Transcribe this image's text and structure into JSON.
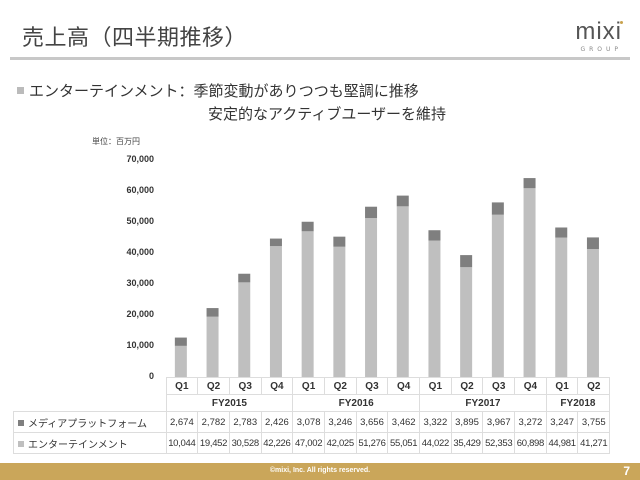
{
  "header": {
    "title": "売上高（四半期推移）",
    "logo_main": "mixi",
    "logo_sub": "GROUP"
  },
  "bullet": {
    "line1": "エンターテインメント：季節変動がありつつも堅調に推移",
    "line2": "安定的なアクティブユーザーを維持"
  },
  "footer": {
    "copyright": "©mixi, Inc. All rights reserved.",
    "page": "7"
  },
  "colors": {
    "media": "#7f7f7f",
    "entertainment": "#bfbfbf",
    "footer": "#caa65a",
    "logo_dot": "#c9a24e"
  },
  "chart_data": {
    "type": "bar",
    "stacked": true,
    "unit_label": "単位：百万円",
    "ylim": [
      0,
      70000
    ],
    "yticks": [
      "0",
      "10,000",
      "20,000",
      "30,000",
      "40,000",
      "50,000",
      "60,000",
      "70,000"
    ],
    "ytick_values": [
      0,
      10000,
      20000,
      30000,
      40000,
      50000,
      60000,
      70000
    ],
    "grid": false,
    "categories": [
      "Q1",
      "Q2",
      "Q3",
      "Q4",
      "Q1",
      "Q2",
      "Q3",
      "Q4",
      "Q1",
      "Q2",
      "Q3",
      "Q4",
      "Q1",
      "Q2"
    ],
    "fiscal_years": [
      {
        "label": "FY2015",
        "span": 4
      },
      {
        "label": "FY2016",
        "span": 4
      },
      {
        "label": "FY2017",
        "span": 4
      },
      {
        "label": "FY2018",
        "span": 2
      }
    ],
    "series": [
      {
        "name": "エンターテインメント",
        "values": [
          10044,
          19452,
          30528,
          42226,
          47002,
          42025,
          51276,
          55051,
          44022,
          35429,
          52353,
          60898,
          44981,
          41271
        ],
        "labels": [
          "10,044",
          "19,452",
          "30,528",
          "42,226",
          "47,002",
          "42,025",
          "51,276",
          "55,051",
          "44,022",
          "35,429",
          "52,353",
          "60,898",
          "44,981",
          "41,271"
        ]
      },
      {
        "name": "メディアプラットフォーム",
        "values": [
          2674,
          2782,
          2783,
          2426,
          3078,
          3246,
          3656,
          3462,
          3322,
          3895,
          3967,
          3272,
          3247,
          3755
        ],
        "labels": [
          "2,674",
          "2,782",
          "2,783",
          "2,426",
          "3,078",
          "3,246",
          "3,656",
          "3,462",
          "3,322",
          "3,895",
          "3,967",
          "3,272",
          "3,247",
          "3,755"
        ]
      }
    ],
    "table_row_order": [
      "メディアプラットフォーム",
      "エンターテインメント"
    ]
  }
}
